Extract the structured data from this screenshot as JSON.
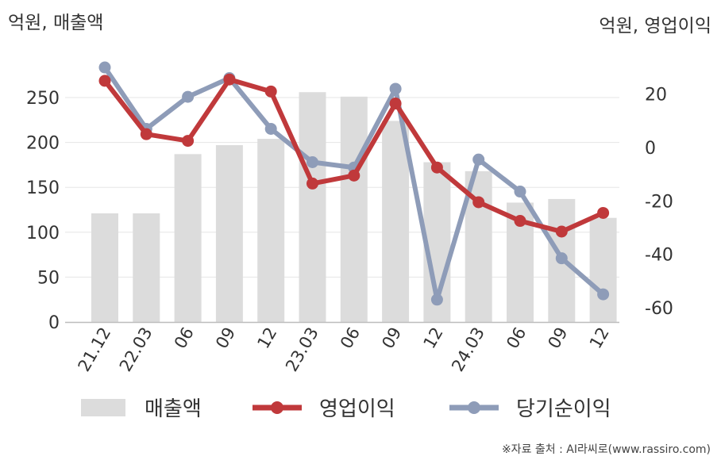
{
  "chart_data": {
    "type": "bar",
    "left_axis_label": "억원, 매출액",
    "right_axis_label": "억원, 영업이익",
    "categories": [
      "21.12",
      "22.03",
      "06",
      "09",
      "12",
      "23.03",
      "06",
      "09",
      "12",
      "24.03",
      "06",
      "09",
      "12"
    ],
    "left_ticks": [
      "0",
      "50",
      "100",
      "150",
      "200",
      "250"
    ],
    "right_ticks": [
      "-60",
      "-40",
      "-20",
      "0",
      "20"
    ],
    "left_ylim": [
      0,
      280
    ],
    "right_ylim": [
      -65,
      35
    ],
    "series": [
      {
        "name": "매출액",
        "type": "bar",
        "axis": "left",
        "color": "#dcdcdc",
        "values": [
          121,
          121,
          187,
          197,
          204,
          256,
          251,
          224,
          178,
          168,
          133,
          137,
          116
        ]
      },
      {
        "name": "영업이익",
        "type": "line",
        "axis": "right",
        "color": "#c0393b",
        "values": [
          25,
          5,
          2.5,
          25.5,
          21,
          -13.5,
          -10.5,
          16.5,
          -7.5,
          -20.5,
          -27.5,
          -31.5,
          -24.5
        ]
      },
      {
        "name": "당기순이익",
        "type": "line",
        "axis": "right",
        "color": "#8e9cb8",
        "values": [
          30,
          7,
          19,
          26,
          7,
          -5.5,
          -7.5,
          22,
          -57,
          -4.5,
          -16.5,
          -41.5,
          -55
        ]
      }
    ],
    "source": "※자료 출처 : AI라씨로(www.rassiro.com)"
  }
}
